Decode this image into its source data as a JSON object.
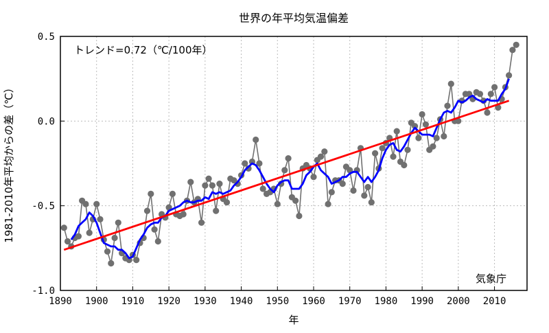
{
  "chart_data": {
    "type": "line",
    "title": "世界の年平均気温偏差",
    "xlabel": "年",
    "ylabel": "1981-2010年平均からの差（℃）",
    "trend_label": "トレンド=0.72（℃/100年）",
    "source": "気象庁",
    "xlim": [
      1890,
      2019
    ],
    "ylim": [
      -1.0,
      0.5
    ],
    "x_ticks": [
      1890,
      1900,
      1910,
      1920,
      1930,
      1940,
      1950,
      1960,
      1970,
      1980,
      1990,
      2000,
      2010
    ],
    "y_ticks": [
      -1.0,
      -0.5,
      0.0,
      0.5
    ],
    "y_tick_labels": [
      "-1.0",
      "-0.5",
      "0.0",
      "0.5"
    ],
    "grid": true,
    "x": [
      1891,
      1892,
      1893,
      1894,
      1895,
      1896,
      1897,
      1898,
      1899,
      1900,
      1901,
      1902,
      1903,
      1904,
      1905,
      1906,
      1907,
      1908,
      1909,
      1910,
      1911,
      1912,
      1913,
      1914,
      1915,
      1916,
      1917,
      1918,
      1919,
      1920,
      1921,
      1922,
      1923,
      1924,
      1925,
      1926,
      1927,
      1928,
      1929,
      1930,
      1931,
      1932,
      1933,
      1934,
      1935,
      1936,
      1937,
      1938,
      1939,
      1940,
      1941,
      1942,
      1943,
      1944,
      1945,
      1946,
      1947,
      1948,
      1949,
      1950,
      1951,
      1952,
      1953,
      1954,
      1955,
      1956,
      1957,
      1958,
      1959,
      1960,
      1961,
      1962,
      1963,
      1964,
      1965,
      1966,
      1967,
      1968,
      1969,
      1970,
      1971,
      1972,
      1973,
      1974,
      1975,
      1976,
      1977,
      1978,
      1979,
      1980,
      1981,
      1982,
      1983,
      1984,
      1985,
      1986,
      1987,
      1988,
      1989,
      1990,
      1991,
      1992,
      1993,
      1994,
      1995,
      1996,
      1997,
      1998,
      1999,
      2000,
      2001,
      2002,
      2003,
      2004,
      2005,
      2006,
      2007,
      2008,
      2009,
      2010,
      2011,
      2012,
      2013,
      2014,
      2015,
      2016
    ],
    "series": [
      {
        "values": [
          -0.63,
          -0.71,
          -0.74,
          -0.69,
          -0.68,
          -0.47,
          -0.49,
          -0.66,
          -0.58,
          -0.49,
          -0.58,
          -0.7,
          -0.77,
          -0.84,
          -0.69,
          -0.6,
          -0.78,
          -0.81,
          -0.82,
          -0.79,
          -0.82,
          -0.72,
          -0.69,
          -0.53,
          -0.43,
          -0.64,
          -0.71,
          -0.55,
          -0.57,
          -0.51,
          -0.43,
          -0.55,
          -0.56,
          -0.55,
          -0.47,
          -0.36,
          -0.48,
          -0.46,
          -0.6,
          -0.38,
          -0.34,
          -0.38,
          -0.53,
          -0.37,
          -0.46,
          -0.48,
          -0.34,
          -0.35,
          -0.37,
          -0.32,
          -0.25,
          -0.28,
          -0.24,
          -0.11,
          -0.25,
          -0.4,
          -0.43,
          -0.42,
          -0.4,
          -0.49,
          -0.37,
          -0.29,
          -0.22,
          -0.45,
          -0.47,
          -0.56,
          -0.28,
          -0.26,
          -0.28,
          -0.33,
          -0.23,
          -0.21,
          -0.18,
          -0.49,
          -0.42,
          -0.35,
          -0.35,
          -0.37,
          -0.27,
          -0.29,
          -0.41,
          -0.29,
          -0.16,
          -0.44,
          -0.39,
          -0.48,
          -0.19,
          -0.28,
          -0.16,
          -0.13,
          -0.1,
          -0.21,
          -0.06,
          -0.24,
          -0.26,
          -0.17,
          -0.01,
          -0.03,
          -0.1,
          0.04,
          -0.02,
          -0.17,
          -0.15,
          -0.1,
          0.01,
          -0.09,
          0.09,
          0.22,
          0.0,
          0.0,
          0.12,
          0.16,
          0.16,
          0.13,
          0.17,
          0.16,
          0.12,
          0.05,
          0.16,
          0.2,
          0.08,
          0.13,
          0.2,
          0.27,
          0.42,
          0.45
        ]
      },
      {
        "values": [
          null,
          null,
          -0.7,
          -0.67,
          -0.62,
          -0.6,
          -0.58,
          -0.54,
          -0.56,
          -0.6,
          -0.66,
          -0.72,
          -0.73,
          -0.74,
          -0.74,
          -0.76,
          -0.76,
          -0.78,
          -0.81,
          -0.8,
          -0.75,
          -0.7,
          -0.67,
          -0.63,
          -0.61,
          -0.6,
          -0.6,
          -0.57,
          -0.56,
          -0.53,
          -0.52,
          -0.51,
          -0.5,
          -0.48,
          -0.47,
          -0.48,
          -0.48,
          -0.47,
          -0.47,
          -0.45,
          -0.46,
          -0.42,
          -0.43,
          -0.42,
          -0.43,
          -0.42,
          -0.41,
          -0.38,
          -0.36,
          -0.33,
          -0.29,
          -0.27,
          -0.25,
          -0.26,
          -0.29,
          -0.33,
          -0.37,
          -0.4,
          -0.42,
          -0.38,
          -0.36,
          -0.35,
          -0.35,
          -0.4,
          -0.4,
          -0.4,
          -0.37,
          -0.32,
          -0.3,
          -0.27,
          -0.25,
          -0.29,
          -0.31,
          -0.33,
          -0.37,
          -0.36,
          -0.35,
          -0.33,
          -0.33,
          -0.31,
          -0.3,
          -0.3,
          -0.33,
          -0.36,
          -0.33,
          -0.36,
          -0.33,
          -0.29,
          -0.22,
          -0.17,
          -0.14,
          -0.13,
          -0.17,
          -0.18,
          -0.15,
          -0.11,
          -0.07,
          -0.04,
          -0.06,
          -0.08,
          -0.08,
          -0.08,
          -0.09,
          -0.04,
          0.01,
          0.05,
          0.06,
          0.05,
          0.08,
          0.12,
          0.11,
          0.12,
          0.14,
          0.15,
          0.13,
          0.12,
          0.11,
          0.13,
          0.12,
          0.12,
          0.12,
          0.16,
          0.19,
          0.25,
          null,
          null
        ]
      },
      {
        "x": [
          1891,
          2014
        ],
        "values": [
          -0.76,
          0.12
        ]
      }
    ],
    "colors": {
      "annual": "#707070",
      "moving_average": "#0000ff",
      "trend": "#ff0000",
      "grid": "#bbbbbb",
      "axis": "#000000"
    }
  }
}
